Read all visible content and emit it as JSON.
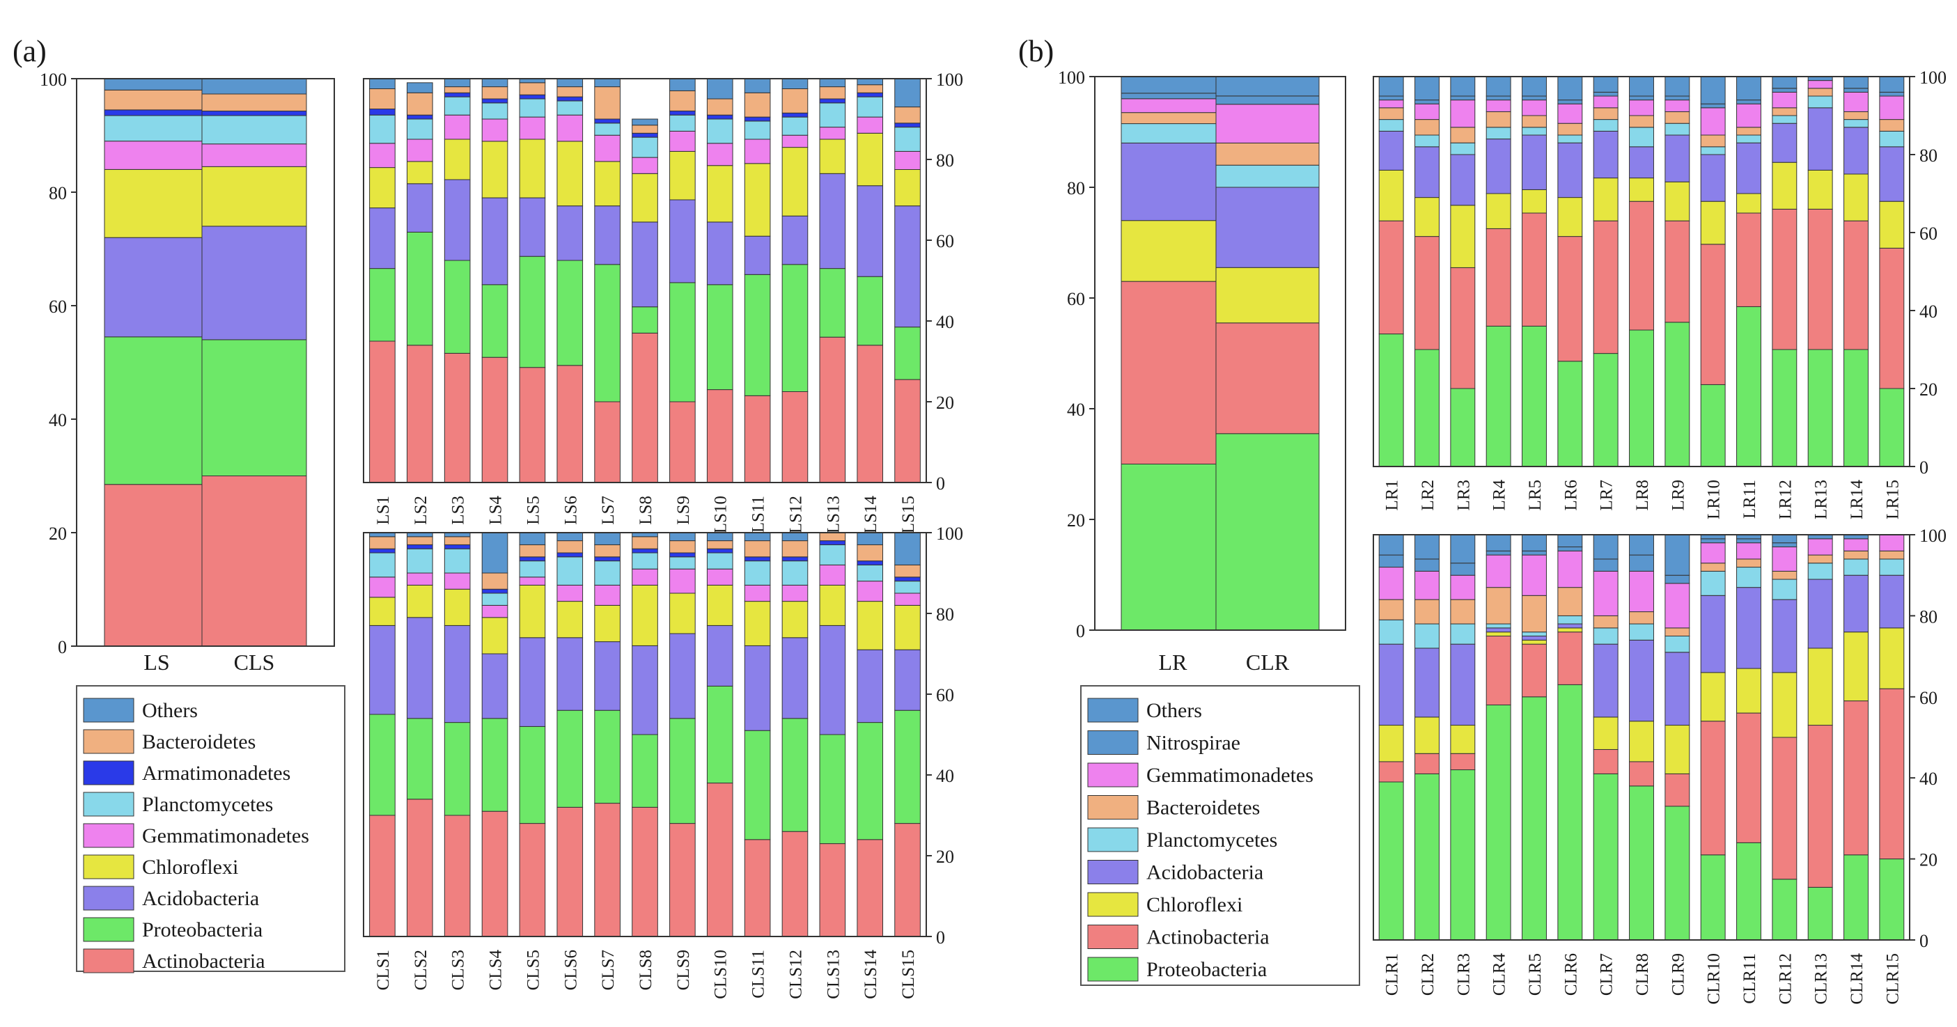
{
  "colors": {
    "Actinobacteria": "#f08080",
    "Proteobacteria": "#6de868",
    "Acidobacteria": "#8b80ea",
    "Chloroflexi": "#e6e640",
    "Gemmatimonadetes": "#ee82ee",
    "Planctomycetes": "#88d8ea",
    "Armatimonadetes": "#2a3ae8",
    "Bacteroidetes": "#f0b080",
    "Others": "#5a96ce",
    "Nitrospirae": "#5a96ce"
  },
  "chart_data": [
    {
      "id": "a-total",
      "type": "bar",
      "stacked": true,
      "panel_label": "(a)",
      "ylim": [
        0,
        100
      ],
      "yticks": [
        0,
        20,
        40,
        60,
        80,
        100
      ],
      "y_axis": "left",
      "categories": [
        "LS",
        "CLS"
      ],
      "series": [
        {
          "name": "Actinobacteria",
          "values": [
            28.5,
            30
          ]
        },
        {
          "name": "Proteobacteria",
          "values": [
            26,
            24
          ]
        },
        {
          "name": "Acidobacteria",
          "values": [
            17.5,
            20
          ]
        },
        {
          "name": "Chloroflexi",
          "values": [
            12,
            10.5
          ]
        },
        {
          "name": "Gemmatimonadetes",
          "values": [
            5,
            4
          ]
        },
        {
          "name": "Planctomycetes",
          "values": [
            4.5,
            5
          ]
        },
        {
          "name": "Armatimonadetes",
          "values": [
            1,
            0.8
          ]
        },
        {
          "name": "Bacteroidetes",
          "values": [
            3.5,
            3
          ]
        },
        {
          "name": "Others",
          "values": [
            2,
            2.7
          ]
        }
      ]
    },
    {
      "id": "a-ls",
      "type": "bar",
      "stacked": true,
      "ylim": [
        0,
        100
      ],
      "yticks": [
        0,
        20,
        40,
        60,
        80,
        100
      ],
      "y_axis": "right",
      "categories": [
        "LS1",
        "LS2",
        "LS3",
        "LS4",
        "LS5",
        "LS6",
        "LS7",
        "LS8",
        "LS9",
        "LS10",
        "LS11",
        "LS12",
        "LS13",
        "LS14",
        "LS15"
      ],
      "series": [
        {
          "name": "Actinobacteria",
          "values": [
            35,
            34,
            32,
            31,
            28.5,
            29,
            20,
            37,
            20,
            23,
            21.5,
            22.5,
            36,
            34,
            25.5
          ]
        },
        {
          "name": "Proteobacteria",
          "values": [
            18,
            28,
            23,
            18,
            27.5,
            26,
            34,
            6.5,
            29.5,
            26,
            30,
            31.5,
            17,
            17,
            13
          ]
        },
        {
          "name": "Acidobacteria",
          "values": [
            15,
            12,
            20,
            21.5,
            14.5,
            13.5,
            14.5,
            21,
            20.5,
            15.5,
            9.5,
            12,
            23.5,
            22.5,
            30
          ]
        },
        {
          "name": "Chloroflexi",
          "values": [
            10,
            5.5,
            10,
            14,
            14.5,
            16,
            11,
            12,
            12,
            14,
            18,
            17,
            8.5,
            13,
            9
          ]
        },
        {
          "name": "Gemmatimonadetes",
          "values": [
            6,
            5.5,
            6,
            5.5,
            5.5,
            6.5,
            6.5,
            4,
            5,
            5.5,
            6,
            3,
            3,
            4,
            4.5
          ]
        },
        {
          "name": "Planctomycetes",
          "values": [
            7,
            5,
            4.5,
            4,
            4.5,
            3.5,
            3,
            5,
            4,
            6,
            4.5,
            4.5,
            6,
            5,
            6
          ]
        },
        {
          "name": "Armatimonadetes",
          "values": [
            1.5,
            1,
            1,
            1,
            1,
            1,
            1,
            1,
            1,
            1,
            1,
            1,
            1,
            1,
            1
          ]
        },
        {
          "name": "Bacteroidetes",
          "values": [
            5,
            5.5,
            1.5,
            3,
            3,
            2.5,
            8,
            2,
            5,
            4,
            6,
            6,
            3,
            2,
            4
          ]
        },
        {
          "name": "Others",
          "values": [
            2.5,
            2.5,
            2,
            2,
            1,
            2,
            2,
            1.5,
            3,
            5,
            3.5,
            2.5,
            2,
            1.5,
            7
          ]
        }
      ]
    },
    {
      "id": "a-cls",
      "type": "bar",
      "stacked": true,
      "ylim": [
        0,
        100
      ],
      "yticks": [
        0,
        20,
        40,
        60,
        80,
        100
      ],
      "y_axis": "right",
      "categories": [
        "CLS1",
        "CLS2",
        "CLS3",
        "CLS4",
        "CLS5",
        "CLS6",
        "CLS7",
        "CLS8",
        "CLS9",
        "CLS10",
        "CLS11",
        "CLS12",
        "CLS13",
        "CLS14",
        "CLS15"
      ],
      "series": [
        {
          "name": "Actinobacteria",
          "values": [
            30,
            34,
            30,
            31,
            28,
            32,
            33,
            32,
            28,
            38,
            24,
            26,
            23,
            24,
            28
          ]
        },
        {
          "name": "Proteobacteria",
          "values": [
            25,
            20,
            23,
            23,
            24,
            24,
            23,
            18,
            26,
            24,
            27,
            28,
            27,
            29,
            28
          ]
        },
        {
          "name": "Acidobacteria",
          "values": [
            22,
            25,
            24,
            16,
            22,
            18,
            17,
            22,
            21,
            15,
            21,
            20,
            27,
            18,
            15
          ]
        },
        {
          "name": "Chloroflexi",
          "values": [
            7,
            8,
            9,
            9,
            13,
            9,
            9,
            15,
            10,
            10,
            11,
            9,
            10,
            12,
            11
          ]
        },
        {
          "name": "Gemmatimonadetes",
          "values": [
            5,
            3,
            4,
            3,
            2,
            4,
            5,
            4,
            6,
            4,
            4,
            4,
            5,
            5,
            3
          ]
        },
        {
          "name": "Planctomycetes",
          "values": [
            6,
            6,
            6,
            3,
            4,
            7,
            6,
            4,
            3,
            4,
            6,
            6,
            5,
            4,
            3
          ]
        },
        {
          "name": "Armatimonadetes",
          "values": [
            1,
            1,
            1,
            1,
            1,
            1,
            1,
            1,
            1,
            1,
            1,
            1,
            1,
            1,
            1
          ]
        },
        {
          "name": "Bacteroidetes",
          "values": [
            3,
            2,
            2,
            4,
            3,
            3,
            3,
            3,
            3,
            2,
            4,
            4,
            2,
            4,
            3
          ]
        },
        {
          "name": "Others",
          "values": [
            1,
            1,
            1,
            10,
            3,
            2,
            3,
            1,
            2,
            2,
            2,
            2,
            1,
            3,
            8
          ]
        }
      ]
    },
    {
      "id": "b-total",
      "type": "bar",
      "stacked": true,
      "panel_label": "(b)",
      "ylim": [
        0,
        100
      ],
      "yticks": [
        0,
        20,
        40,
        60,
        80,
        100
      ],
      "y_axis": "left",
      "categories": [
        "LR",
        "CLR"
      ],
      "series": [
        {
          "name": "Proteobacteria",
          "values": [
            30,
            35.5
          ]
        },
        {
          "name": "Actinobacteria",
          "values": [
            33,
            20
          ]
        },
        {
          "name": "Chloroflexi",
          "values": [
            11,
            10
          ]
        },
        {
          "name": "Acidobacteria",
          "values": [
            14,
            14.5
          ]
        },
        {
          "name": "Planctomycetes",
          "values": [
            3.5,
            4
          ]
        },
        {
          "name": "Bacteroidetes",
          "values": [
            2,
            4
          ]
        },
        {
          "name": "Gemmatimonadetes",
          "values": [
            2.5,
            7
          ]
        },
        {
          "name": "Nitrospirae",
          "values": [
            1,
            1.5
          ]
        },
        {
          "name": "Others",
          "values": [
            3,
            3.5
          ]
        }
      ]
    },
    {
      "id": "b-lr",
      "type": "bar",
      "stacked": true,
      "ylim": [
        0,
        100
      ],
      "yticks": [
        0,
        20,
        40,
        60,
        80,
        100
      ],
      "y_axis": "right",
      "categories": [
        "LR1",
        "LR2",
        "LR3",
        "LR4",
        "LR5",
        "LR6",
        "LR7",
        "LR8",
        "LR9",
        "LR10",
        "LR11",
        "LR12",
        "LR13",
        "LR14",
        "LR15"
      ],
      "series": [
        {
          "name": "Proteobacteria",
          "values": [
            34,
            30,
            20,
            36,
            36,
            27,
            29,
            35,
            37,
            21,
            41,
            30,
            30,
            30,
            20
          ]
        },
        {
          "name": "Actinobacteria",
          "values": [
            29,
            29,
            31,
            25,
            29,
            32,
            34,
            33,
            26,
            36,
            24,
            36,
            36,
            33,
            36
          ]
        },
        {
          "name": "Chloroflexi",
          "values": [
            13,
            10,
            16,
            9,
            6,
            10,
            11,
            6,
            10,
            11,
            5,
            12,
            10,
            12,
            12
          ]
        },
        {
          "name": "Acidobacteria",
          "values": [
            10,
            13,
            13,
            14,
            14,
            14,
            12,
            8,
            12,
            12,
            13,
            10,
            16,
            12,
            14
          ]
        },
        {
          "name": "Planctomycetes",
          "values": [
            3,
            3,
            3,
            3,
            2,
            2,
            3,
            5,
            3,
            2,
            2,
            2,
            3,
            2,
            4
          ]
        },
        {
          "name": "Bacteroidetes",
          "values": [
            3,
            4,
            4,
            4,
            3,
            3,
            3,
            3,
            3,
            3,
            2,
            2,
            2,
            2,
            3
          ]
        },
        {
          "name": "Gemmatimonadetes",
          "values": [
            2,
            4,
            7,
            3,
            4,
            5,
            3,
            4,
            3,
            7,
            6,
            4,
            2,
            5,
            6
          ]
        },
        {
          "name": "Nitrospirae",
          "values": [
            1,
            1,
            1,
            1,
            1,
            1,
            1,
            1,
            1,
            1,
            1,
            1,
            1,
            1,
            1
          ]
        },
        {
          "name": "Others",
          "values": [
            5,
            6,
            5,
            5,
            5,
            6,
            4,
            5,
            5,
            7,
            6,
            3,
            0,
            3,
            4
          ]
        }
      ]
    },
    {
      "id": "b-clr",
      "type": "bar",
      "stacked": true,
      "ylim": [
        0,
        100
      ],
      "yticks": [
        0,
        20,
        40,
        60,
        80,
        100
      ],
      "y_axis": "right",
      "categories": [
        "CLR1",
        "CLR2",
        "CLR3",
        "CLR4",
        "CLR5",
        "CLR6",
        "CLR7",
        "CLR8",
        "CLR9",
        "CLR10",
        "CLR11",
        "CLR12",
        "CLR13",
        "CLR14",
        "CLR15"
      ],
      "series": [
        {
          "name": "Proteobacteria",
          "values": [
            39,
            41,
            42,
            58,
            60,
            63,
            41,
            38,
            33,
            21,
            24,
            15,
            13,
            21,
            20
          ]
        },
        {
          "name": "Actinobacteria",
          "values": [
            5,
            5,
            4,
            17,
            13,
            13,
            6,
            6,
            8,
            33,
            32,
            35,
            40,
            38,
            42
          ]
        },
        {
          "name": "Chloroflexi",
          "values": [
            9,
            9,
            7,
            1,
            1,
            1,
            8,
            10,
            12,
            12,
            11,
            16,
            19,
            17,
            15
          ]
        },
        {
          "name": "Acidobacteria",
          "values": [
            20,
            17,
            20,
            1,
            1,
            1,
            18,
            20,
            18,
            19,
            20,
            18,
            17,
            14,
            13
          ]
        },
        {
          "name": "Planctomycetes",
          "values": [
            6,
            6,
            5,
            1,
            1,
            2,
            4,
            4,
            4,
            6,
            5,
            5,
            4,
            4,
            4
          ]
        },
        {
          "name": "Bacteroidetes",
          "values": [
            5,
            6,
            6,
            9,
            9,
            7,
            3,
            3,
            2,
            2,
            2,
            2,
            2,
            2,
            2
          ]
        },
        {
          "name": "Gemmatimonadetes",
          "values": [
            8,
            7,
            6,
            8,
            10,
            9,
            11,
            10,
            11,
            5,
            4,
            6,
            4,
            3,
            4
          ]
        },
        {
          "name": "Nitrospirae",
          "values": [
            3,
            3,
            3,
            1,
            1,
            1,
            3,
            4,
            2,
            1,
            1,
            1,
            1,
            1,
            1
          ]
        },
        {
          "name": "Others",
          "values": [
            5,
            6,
            7,
            4,
            4,
            3,
            6,
            5,
            10,
            1,
            1,
            2,
            0,
            0,
            0
          ]
        }
      ]
    }
  ],
  "legend_a": [
    "Others",
    "Bacteroidetes",
    "Armatimonadetes",
    "Planctomycetes",
    "Gemmatimonadetes",
    "Chloroflexi",
    "Acidobacteria",
    "Proteobacteria",
    "Actinobacteria"
  ],
  "legend_b": [
    "Others",
    "Nitrospirae",
    "Gemmatimonadetes",
    "Bacteroidetes",
    "Planctomycetes",
    "Acidobacteria",
    "Chloroflexi",
    "Actinobacteria",
    "Proteobacteria"
  ]
}
